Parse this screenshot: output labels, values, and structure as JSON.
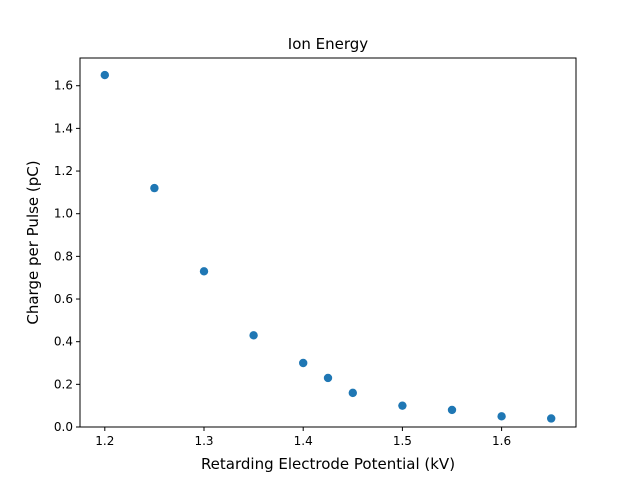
{
  "chart_data": {
    "type": "scatter",
    "title": "Ion Energy",
    "xlabel": "Retarding Electrode Potential (kV)",
    "ylabel": "Charge per Pulse (pC)",
    "xlim": [
      1.175,
      1.675
    ],
    "ylim": [
      0.0,
      1.73
    ],
    "x_ticks": [
      1.2,
      1.3,
      1.4,
      1.5,
      1.6
    ],
    "x_tick_labels": [
      "1.2",
      "1.3",
      "1.4",
      "1.5",
      "1.6"
    ],
    "y_ticks": [
      0.0,
      0.2,
      0.4,
      0.6,
      0.8,
      1.0,
      1.2,
      1.4,
      1.6
    ],
    "y_tick_labels": [
      "0.0",
      "0.2",
      "0.4",
      "0.6",
      "0.8",
      "1.0",
      "1.2",
      "1.4",
      "1.6"
    ],
    "grid": false,
    "marker_color": "#1f77b4",
    "series": [
      {
        "x": [
          1.2,
          1.25,
          1.3,
          1.35,
          1.4,
          1.425,
          1.45,
          1.5,
          1.55,
          1.6,
          1.65
        ],
        "y": [
          1.65,
          1.12,
          0.73,
          0.43,
          0.3,
          0.23,
          0.16,
          0.1,
          0.08,
          0.05,
          0.04
        ]
      }
    ]
  }
}
